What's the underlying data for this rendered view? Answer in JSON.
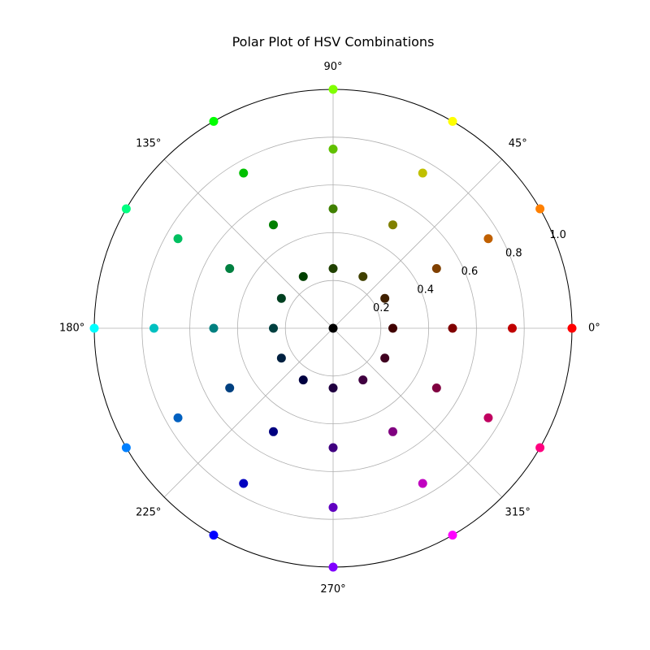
{
  "chart_data": {
    "type": "scatter",
    "title": "Polar Plot of HSV Combinations",
    "projection": "polar",
    "grid": true,
    "theta_ticks": [
      "0°",
      "45°",
      "90°",
      "135°",
      "180°",
      "225°",
      "270°",
      "315°"
    ],
    "r_ticks": [
      "0.2",
      "0.4",
      "0.6",
      "0.8",
      "1.0"
    ],
    "r_tick_values": [
      0.2,
      0.4,
      0.6,
      0.8,
      1.0
    ],
    "rlim": [
      0,
      1.0
    ],
    "theta_unit": "degrees",
    "points": [
      {
        "theta": 0,
        "r": 0.0,
        "color": "#000000"
      },
      {
        "theta": 0,
        "r": 0.25,
        "color": "#400000"
      },
      {
        "theta": 0,
        "r": 0.5,
        "color": "#800000"
      },
      {
        "theta": 0,
        "r": 0.75,
        "color": "#c00000"
      },
      {
        "theta": 0,
        "r": 1.0,
        "color": "#ff0000"
      },
      {
        "theta": 30,
        "r": 0.25,
        "color": "#402000"
      },
      {
        "theta": 30,
        "r": 0.5,
        "color": "#804000"
      },
      {
        "theta": 30,
        "r": 0.75,
        "color": "#c06000"
      },
      {
        "theta": 30,
        "r": 1.0,
        "color": "#ff8000"
      },
      {
        "theta": 60,
        "r": 0.25,
        "color": "#404000"
      },
      {
        "theta": 60,
        "r": 0.5,
        "color": "#808000"
      },
      {
        "theta": 60,
        "r": 0.75,
        "color": "#c0c000"
      },
      {
        "theta": 60,
        "r": 1.0,
        "color": "#ffff00"
      },
      {
        "theta": 90,
        "r": 0.25,
        "color": "#204000"
      },
      {
        "theta": 90,
        "r": 0.5,
        "color": "#408000"
      },
      {
        "theta": 90,
        "r": 0.75,
        "color": "#60c000"
      },
      {
        "theta": 90,
        "r": 1.0,
        "color": "#80ff00"
      },
      {
        "theta": 120,
        "r": 0.25,
        "color": "#004000"
      },
      {
        "theta": 120,
        "r": 0.5,
        "color": "#008000"
      },
      {
        "theta": 120,
        "r": 0.75,
        "color": "#00c000"
      },
      {
        "theta": 120,
        "r": 1.0,
        "color": "#00ff00"
      },
      {
        "theta": 150,
        "r": 0.25,
        "color": "#004020"
      },
      {
        "theta": 150,
        "r": 0.5,
        "color": "#008040"
      },
      {
        "theta": 150,
        "r": 0.75,
        "color": "#00c060"
      },
      {
        "theta": 150,
        "r": 1.0,
        "color": "#00ff80"
      },
      {
        "theta": 180,
        "r": 0.25,
        "color": "#004040"
      },
      {
        "theta": 180,
        "r": 0.5,
        "color": "#008080"
      },
      {
        "theta": 180,
        "r": 0.75,
        "color": "#00c0c0"
      },
      {
        "theta": 180,
        "r": 1.0,
        "color": "#00ffff"
      },
      {
        "theta": 210,
        "r": 0.25,
        "color": "#002040"
      },
      {
        "theta": 210,
        "r": 0.5,
        "color": "#004080"
      },
      {
        "theta": 210,
        "r": 0.75,
        "color": "#0060c0"
      },
      {
        "theta": 210,
        "r": 1.0,
        "color": "#0080ff"
      },
      {
        "theta": 240,
        "r": 0.25,
        "color": "#000040"
      },
      {
        "theta": 240,
        "r": 0.5,
        "color": "#000080"
      },
      {
        "theta": 240,
        "r": 0.75,
        "color": "#0000c0"
      },
      {
        "theta": 240,
        "r": 1.0,
        "color": "#0000ff"
      },
      {
        "theta": 270,
        "r": 0.25,
        "color": "#200040"
      },
      {
        "theta": 270,
        "r": 0.5,
        "color": "#400080"
      },
      {
        "theta": 270,
        "r": 0.75,
        "color": "#6000c0"
      },
      {
        "theta": 270,
        "r": 1.0,
        "color": "#8000ff"
      },
      {
        "theta": 300,
        "r": 0.25,
        "color": "#400040"
      },
      {
        "theta": 300,
        "r": 0.5,
        "color": "#800080"
      },
      {
        "theta": 300,
        "r": 0.75,
        "color": "#c000c0"
      },
      {
        "theta": 300,
        "r": 1.0,
        "color": "#ff00ff"
      },
      {
        "theta": 330,
        "r": 0.25,
        "color": "#400020"
      },
      {
        "theta": 330,
        "r": 0.5,
        "color": "#800040"
      },
      {
        "theta": 330,
        "r": 0.75,
        "color": "#c00060"
      },
      {
        "theta": 330,
        "r": 1.0,
        "color": "#ff0080"
      }
    ]
  }
}
